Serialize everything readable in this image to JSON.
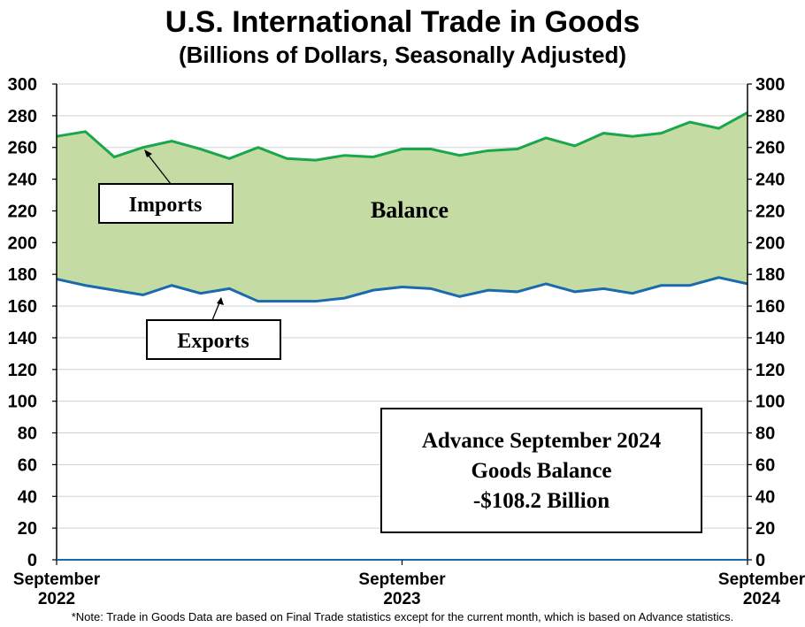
{
  "chart_data": {
    "type": "area",
    "title": "U.S. International Trade in Goods",
    "subtitle": "(Billions of Dollars, Seasonally Adjusted)",
    "x": [
      "Sep 2022",
      "Oct 2022",
      "Nov 2022",
      "Dec 2022",
      "Jan 2023",
      "Feb 2023",
      "Mar 2023",
      "Apr 2023",
      "May 2023",
      "Jun 2023",
      "Jul 2023",
      "Aug 2023",
      "Sep 2023",
      "Oct 2023",
      "Nov 2023",
      "Dec 2023",
      "Jan 2024",
      "Feb 2024",
      "Mar 2024",
      "Apr 2024",
      "May 2024",
      "Jun 2024",
      "Jul 2024",
      "Aug 2024",
      "Sep 2024"
    ],
    "x_tick_labels": [
      {
        "index": 0,
        "line1": "September",
        "line2": "2022"
      },
      {
        "index": 12,
        "line1": "September",
        "line2": "2023"
      },
      {
        "index": 24,
        "line1": "September",
        "line2": "2024"
      }
    ],
    "series": [
      {
        "name": "Imports",
        "color": "#1aa64b",
        "values": [
          267,
          270,
          254,
          260,
          264,
          259,
          253,
          260,
          253,
          252,
          255,
          254,
          259,
          259,
          255,
          258,
          259,
          266,
          261,
          269,
          267,
          269,
          276,
          272,
          282
        ]
      },
      {
        "name": "Exports",
        "color": "#1a6aad",
        "values": [
          177,
          173,
          170,
          167,
          173,
          168,
          171,
          163,
          163,
          163,
          165,
          170,
          172,
          171,
          166,
          170,
          169,
          174,
          169,
          171,
          168,
          173,
          173,
          178,
          174
        ]
      }
    ],
    "fill_label": "Balance",
    "fill_color": "#c5dba4",
    "ylim": [
      0,
      300
    ],
    "y_ticks": [
      0,
      20,
      40,
      60,
      80,
      100,
      120,
      140,
      160,
      180,
      200,
      220,
      240,
      260,
      280,
      300
    ],
    "grid": true,
    "callout": {
      "line1": "Advance September 2024",
      "line2": "Goods Balance",
      "line3": "-$108.2 Billion"
    },
    "note": "*Note: Trade in Goods Data are based on Final Trade statistics except for the current month, which is based on Advance statistics."
  }
}
